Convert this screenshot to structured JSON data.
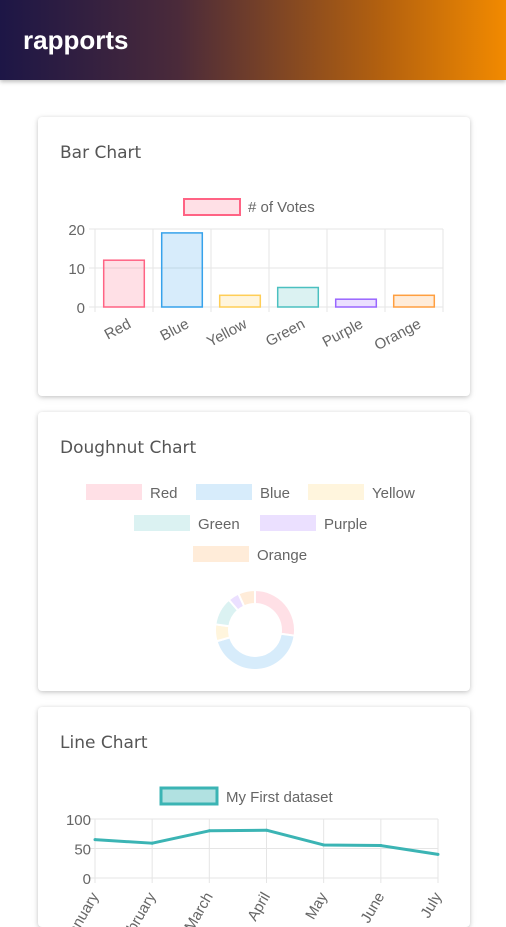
{
  "app": {
    "title": "rapports"
  },
  "cards": [
    {
      "title": "Bar Chart"
    },
    {
      "title": "Doughnut Chart"
    },
    {
      "title": "Line Chart"
    }
  ],
  "colors": {
    "red": "#ff6384",
    "blue": "#36a2eb",
    "yellow": "#ffce56",
    "green": "#4bc0c0",
    "purple": "#9966ff",
    "orange": "#ff9f40",
    "line": "#3bb4b4"
  },
  "chart_data": [
    {
      "type": "bar",
      "categories": [
        "Red",
        "Blue",
        "Yellow",
        "Green",
        "Purple",
        "Orange"
      ],
      "series": [
        {
          "name": "# of Votes",
          "values": [
            12,
            19,
            3,
            5,
            2,
            3
          ]
        }
      ],
      "title": "",
      "yticks": [
        "0",
        "10",
        "20"
      ],
      "ylim": [
        0,
        20
      ],
      "legend": "top"
    },
    {
      "type": "pie",
      "labels": [
        "Red",
        "Blue",
        "Yellow",
        "Green",
        "Purple",
        "Orange"
      ],
      "values": [
        12,
        19,
        3,
        5,
        2,
        3
      ],
      "legend": "top"
    },
    {
      "type": "line",
      "categories": [
        "January",
        "February",
        "March",
        "April",
        "May",
        "June",
        "July"
      ],
      "series": [
        {
          "name": "My First dataset",
          "values": [
            65,
            59,
            80,
            81,
            56,
            55,
            40
          ]
        }
      ],
      "yticks": [
        "0",
        "50",
        "100"
      ],
      "ylim": [
        0,
        100
      ],
      "legend": "top"
    }
  ]
}
